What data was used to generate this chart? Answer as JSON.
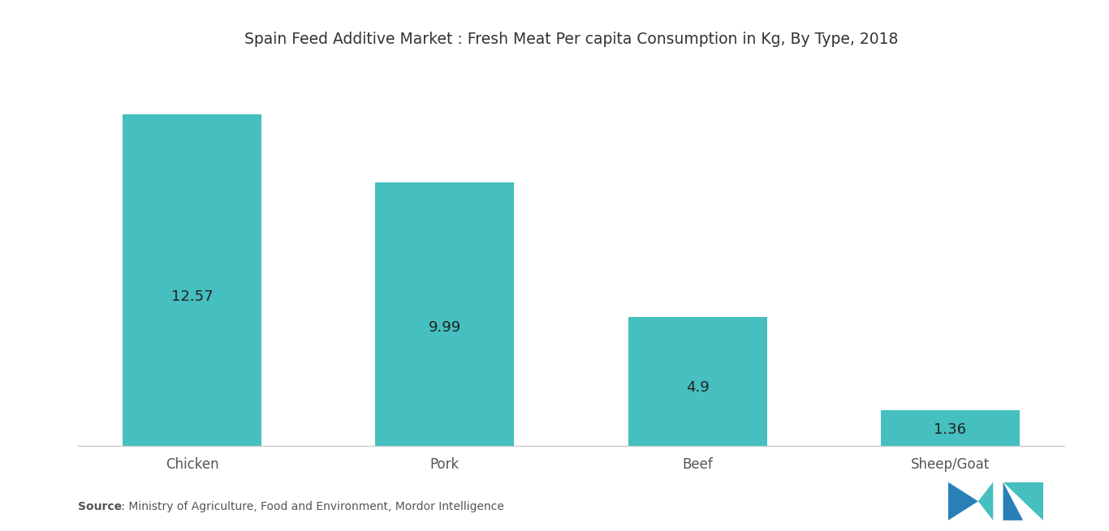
{
  "title": "Spain Feed Additive Market : Fresh Meat Per capita Consumption in Kg, By Type, 2018",
  "categories": [
    "Chicken",
    "Pork",
    "Beef",
    "Sheep/Goat"
  ],
  "values": [
    12.57,
    9.99,
    4.9,
    1.36
  ],
  "labels": [
    "12.57",
    "9.99",
    "4.9",
    "1.36"
  ],
  "bar_color": "#45BFBF",
  "background_color": "#FFFFFF",
  "plot_bg_color": "#FFFFFF",
  "title_fontsize": 13.5,
  "label_fontsize": 13,
  "tick_fontsize": 12,
  "source_bold": "Source",
  "source_rest": " : Ministry of Agriculture, Food and Environment, Mordor Intelligence",
  "source_fontsize": 10,
  "ylim": [
    0,
    14.5
  ],
  "bar_width": 0.55,
  "logo_color_left": "#2980b9",
  "logo_color_right": "#45BFBF"
}
